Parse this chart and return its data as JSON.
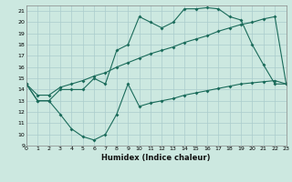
{
  "title": "",
  "xlabel": "Humidex (Indice chaleur)",
  "bg_color": "#cce8e0",
  "line_color": "#1a6b5a",
  "grid_color": "#aacccc",
  "line1_y": [
    14.5,
    13,
    13,
    14,
    14,
    14,
    15,
    14.5,
    17.5,
    18,
    20.5,
    20,
    19.5,
    20,
    21.2,
    21.2,
    21.3,
    21.2,
    20.5,
    20.2,
    18,
    16.2,
    14.5,
    14.5
  ],
  "line2_y": [
    14.5,
    13.5,
    13.5,
    14.2,
    14.5,
    14.8,
    15.2,
    15.5,
    16.0,
    16.4,
    16.8,
    17.2,
    17.5,
    17.8,
    18.2,
    18.5,
    18.8,
    19.2,
    19.5,
    19.8,
    20.0,
    20.3,
    20.5,
    14.5
  ],
  "line3_y": [
    14.5,
    13,
    13,
    11.8,
    10.5,
    9.8,
    9.5,
    10.0,
    11.8,
    14.5,
    12.5,
    12.8,
    13.0,
    13.2,
    13.5,
    13.7,
    13.9,
    14.1,
    14.3,
    14.5,
    14.6,
    14.7,
    14.8,
    14.5
  ],
  "xlim": [
    0,
    23
  ],
  "ylim": [
    9,
    21.5
  ],
  "yticks": [
    9,
    10,
    11,
    12,
    13,
    14,
    15,
    16,
    17,
    18,
    19,
    20,
    21
  ],
  "xticks": [
    0,
    1,
    2,
    3,
    4,
    5,
    6,
    7,
    8,
    9,
    10,
    11,
    12,
    13,
    14,
    15,
    16,
    17,
    18,
    19,
    20,
    21,
    22,
    23
  ]
}
